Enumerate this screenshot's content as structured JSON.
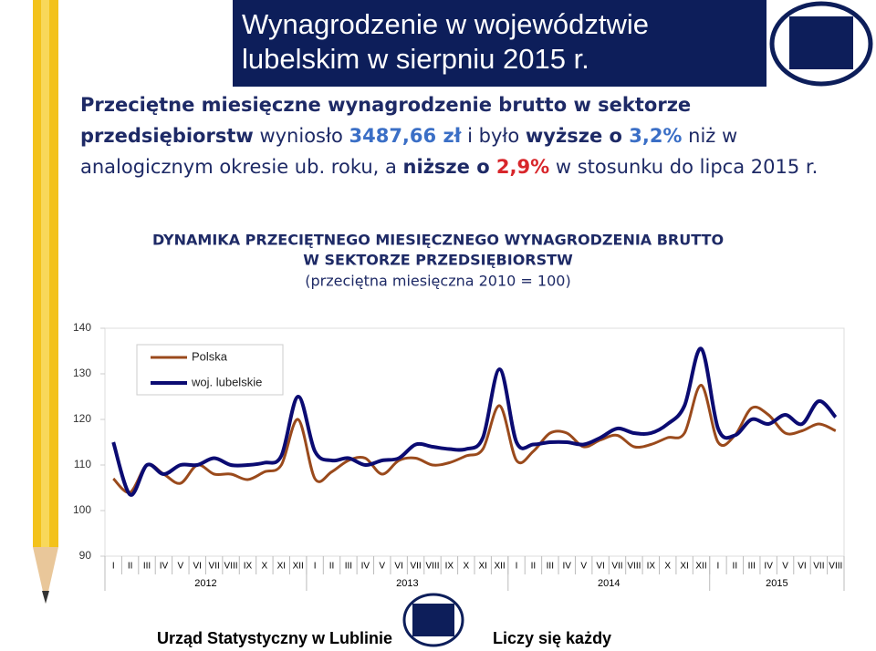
{
  "header": {
    "title_line1": "Wynagrodzenie w województwie",
    "title_line2": "lubelskim w sierpniu 2015 r."
  },
  "intro": [
    "Przeciętne miesięczne wynagrodzenie brutto w sektorze przedsiębiorstw",
    " wyniosło ",
    "3487,66 zł",
    " i było ",
    "wyższe o",
    " 3,2%",
    " niż w analogicznym okresie ub. roku, a ",
    "niższe o",
    " 2,9%",
    " w stosunku do lipca 2015 r."
  ],
  "chart_data": {
    "type": "line",
    "title": [
      "DYNAMIKA PRZECIĘTNEGO MIESIĘCZNEGO WYNAGRODZENIA BRUTTO",
      "W SEKTORZE PRZEDSIĘBIORSTW"
    ],
    "subtitle": "(przeciętna miesięczna 2010 = 100)",
    "categories": [
      "I",
      "II",
      "III",
      "IV",
      "V",
      "VI",
      "VII",
      "VIII",
      "IX",
      "X",
      "XI",
      "XII",
      "I",
      "II",
      "III",
      "IV",
      "V",
      "VI",
      "VII",
      "VIII",
      "IX",
      "X",
      "XI",
      "XII",
      "I",
      "II",
      "III",
      "IV",
      "V",
      "VI",
      "VII",
      "VIII",
      "IX",
      "X",
      "XI",
      "XII",
      "I",
      "II",
      "III",
      "IV",
      "V",
      "VI",
      "VII",
      "VIII"
    ],
    "year_groups": [
      "2012",
      "2013",
      "2014",
      "2015"
    ],
    "ylim": [
      90,
      140
    ],
    "yticks": [
      90,
      100,
      110,
      120,
      130,
      140
    ],
    "legend": "top-left",
    "series": [
      {
        "name": "Polska",
        "color": "#9a4a1c",
        "values": [
          107,
          104,
          110,
          108,
          106,
          110,
          108,
          108,
          106.8,
          108.5,
          110,
          120,
          107,
          108.5,
          111,
          111.5,
          108,
          111,
          111.5,
          110,
          110.5,
          112,
          113.5,
          123,
          111,
          113,
          117,
          117,
          114,
          115.5,
          116.5,
          114,
          114.5,
          116,
          117,
          127.5,
          115,
          116.5,
          122.5,
          121,
          117,
          117.5,
          119,
          117.5
        ]
      },
      {
        "name": "woj. lubelskie",
        "color": "#0b0b72",
        "values": [
          115,
          103.5,
          110,
          108,
          110,
          110,
          111.5,
          110,
          110,
          110.5,
          112,
          125,
          113,
          111,
          111.5,
          110,
          111,
          111.5,
          114.5,
          114,
          113.5,
          113.5,
          116,
          131,
          115,
          114.5,
          115,
          115,
          114.5,
          116,
          118,
          117,
          117,
          119,
          123,
          135.5,
          118,
          116.5,
          120,
          119,
          121,
          119,
          124,
          120.5
        ]
      }
    ]
  },
  "footer": {
    "left": "Urząd Statystyczny w Lublinie",
    "right": "Liczy się każdy"
  }
}
